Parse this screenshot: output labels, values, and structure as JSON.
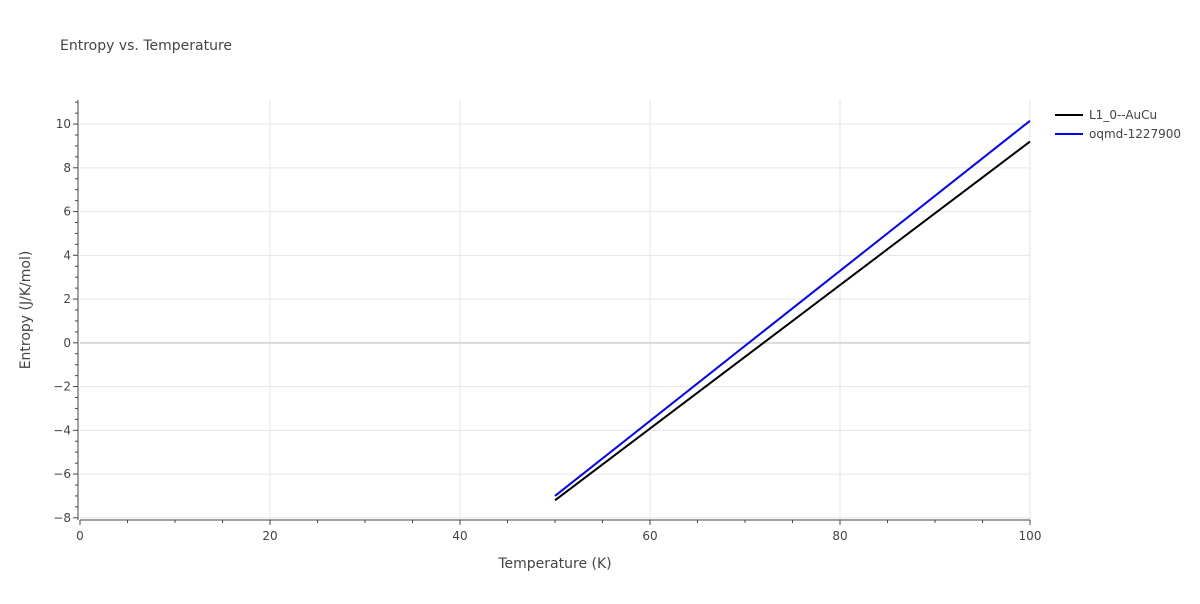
{
  "chart_data": {
    "type": "line",
    "title": "Entropy vs. Temperature",
    "xlabel": "Temperature (K)",
    "ylabel": "Entropy (J/K/mol)",
    "xlim": [
      0,
      100
    ],
    "ylim": [
      -8.1,
      11.1
    ],
    "x_ticks": [
      0,
      20,
      40,
      60,
      80,
      100
    ],
    "x_tick_labels": [
      "0",
      "20",
      "40",
      "60",
      "80",
      "100"
    ],
    "y_ticks": [
      -8,
      -6,
      -4,
      -2,
      0,
      2,
      4,
      6,
      8,
      10
    ],
    "y_tick_labels": [
      "−8",
      "−6",
      "−4",
      "−2",
      "0",
      "2",
      "4",
      "6",
      "8",
      "10"
    ],
    "grid": true,
    "legend_position": "top-right",
    "series": [
      {
        "name": "L1_0--AuCu",
        "color": "#000000",
        "x": [
          50,
          100
        ],
        "y": [
          -7.2,
          9.2
        ]
      },
      {
        "name": "oqmd-1227900",
        "color": "#0000ff",
        "x": [
          50,
          100
        ],
        "y": [
          -7.0,
          10.15
        ]
      }
    ]
  },
  "colors": {
    "text": "#444444",
    "title": "#444444",
    "grid": "#e5e5e5",
    "zeroline": "#d9d9d9",
    "axis": "#444444"
  }
}
